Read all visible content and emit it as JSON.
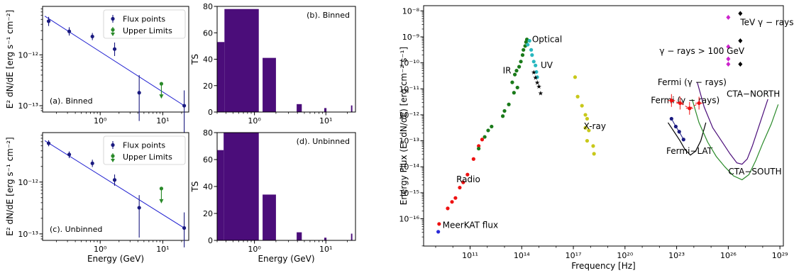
{
  "colors": {
    "navy": "#1a1a80",
    "line_blue": "#1f1fd0",
    "green": "#2a8a2a",
    "purple": "#4b0d7a",
    "red": "#ee1111",
    "forest": "#1a7a1a",
    "cyan": "#2ab8c0",
    "olive": "#c8c81a",
    "magenta": "#cc22cc",
    "black": "#000000",
    "cta_north": "#4b0d7a",
    "cta_south": "#2a8a2a",
    "meerkat": "#2a2ad8"
  },
  "chart_data": [
    {
      "id": "sed_binned",
      "type": "scatter",
      "panel_label": "(a). Binned",
      "xlabel": "",
      "ylabel": "E² dN/dE [erg s⁻¹ cm⁻²]",
      "xscale": "log",
      "yscale": "log",
      "xlim": [
        0.12,
        26
      ],
      "ylim": [
        7.5e-14,
        9e-12
      ],
      "xticks": [
        {
          "v": 1,
          "label": "10⁰"
        },
        {
          "v": 10,
          "label": "10¹"
        }
      ],
      "yticks": [
        {
          "v": 1e-12,
          "label": "10⁻¹²"
        },
        {
          "v": 1e-13,
          "label": "10⁻¹³"
        }
      ],
      "legend": {
        "position": "top-right",
        "entries": [
          "Flux points",
          "Upper Limits"
        ]
      },
      "series": [
        {
          "name": "Flux points",
          "points": [
            {
              "x": 0.15,
              "y": 4.6e-12,
              "lo": 3.7e-12,
              "hi": 5.6e-12
            },
            {
              "x": 0.32,
              "y": 2.9e-12,
              "lo": 2.4e-12,
              "hi": 3.5e-12
            },
            {
              "x": 0.75,
              "y": 2.3e-12,
              "lo": 1.95e-12,
              "hi": 2.7e-12
            },
            {
              "x": 1.7,
              "y": 1.3e-12,
              "lo": 9.5e-13,
              "hi": 1.75e-12
            },
            {
              "x": 4.2,
              "y": 1.8e-13,
              "lo": 5e-14,
              "hi": 4e-13
            },
            {
              "x": 22,
              "y": 1e-13,
              "lo": 3e-14,
              "hi": 2e-13
            }
          ]
        },
        {
          "name": "Upper Limits",
          "points": [
            {
              "x": 9.5,
              "y": 2.7e-13
            }
          ]
        }
      ],
      "model_line": [
        {
          "x": 0.13,
          "y": 5.8e-12
        },
        {
          "x": 22,
          "y": 1e-13
        }
      ]
    },
    {
      "id": "ts_binned",
      "type": "bar",
      "panel_label": "(b). Binned",
      "xlabel": "",
      "ylabel": "TS",
      "xscale": "log",
      "xlim": [
        0.3,
        26
      ],
      "ylim": [
        0,
        80
      ],
      "xticks": [
        {
          "v": 1,
          "label": "10⁰"
        },
        {
          "v": 10,
          "label": "10¹"
        }
      ],
      "yticks": [
        0,
        20,
        40,
        60,
        80
      ],
      "bars": [
        {
          "x0": 0.3,
          "x1": 0.38,
          "value": 53
        },
        {
          "x0": 0.38,
          "x1": 1.15,
          "value": 78
        },
        {
          "x0": 1.3,
          "x1": 2.0,
          "value": 41
        },
        {
          "x0": 3.9,
          "x1": 4.6,
          "value": 6
        },
        {
          "x0": 9.5,
          "x1": 10.2,
          "value": 3
        },
        {
          "x0": 22.5,
          "x1": 23.5,
          "value": 5
        }
      ]
    },
    {
      "id": "sed_unbinned",
      "type": "scatter",
      "panel_label": "(c). Unbinned",
      "xlabel": "Energy (GeV)",
      "ylabel": "E² dN/dE [erg s⁻¹ cm⁻²]",
      "xscale": "log",
      "yscale": "log",
      "xlim": [
        0.12,
        26
      ],
      "ylim": [
        7.5e-14,
        9e-12
      ],
      "xticks": [
        {
          "v": 1,
          "label": "10⁰"
        },
        {
          "v": 10,
          "label": "10¹"
        }
      ],
      "yticks": [
        {
          "v": 1e-12,
          "label": "10⁻¹²"
        },
        {
          "v": 1e-13,
          "label": "10⁻¹³"
        }
      ],
      "legend": {
        "position": "top-right",
        "entries": [
          "Flux points",
          "Upper Limits"
        ]
      },
      "series": [
        {
          "name": "Flux points",
          "points": [
            {
              "x": 0.15,
              "y": 5.6e-12,
              "lo": 4.9e-12,
              "hi": 6.4e-12
            },
            {
              "x": 0.32,
              "y": 3.4e-12,
              "lo": 2.9e-12,
              "hi": 3.9e-12
            },
            {
              "x": 0.75,
              "y": 2.3e-12,
              "lo": 1.95e-12,
              "hi": 2.7e-12
            },
            {
              "x": 1.7,
              "y": 1.1e-12,
              "lo": 8.5e-13,
              "hi": 1.4e-12
            },
            {
              "x": 4.2,
              "y": 3.2e-13,
              "lo": 8.5e-14,
              "hi": 5.6e-13
            },
            {
              "x": 22,
              "y": 1.3e-13,
              "lo": 5.5e-14,
              "hi": 2.6e-13
            }
          ]
        },
        {
          "name": "Upper Limits",
          "points": [
            {
              "x": 9.5,
              "y": 7.5e-13
            }
          ]
        }
      ],
      "model_line": [
        {
          "x": 0.13,
          "y": 6.3e-12
        },
        {
          "x": 22,
          "y": 1.3e-13
        }
      ]
    },
    {
      "id": "ts_unbinned",
      "type": "bar",
      "panel_label": "(d). Unbinned",
      "xlabel": "Energy (GeV)",
      "ylabel": "TS",
      "xscale": "log",
      "xlim": [
        0.3,
        26
      ],
      "ylim": [
        0,
        80
      ],
      "xticks": [
        {
          "v": 1,
          "label": "10⁰"
        },
        {
          "v": 10,
          "label": "10¹"
        }
      ],
      "yticks": [
        0,
        20,
        40,
        60,
        80
      ],
      "bars": [
        {
          "x0": 0.3,
          "x1": 0.37,
          "value": 67
        },
        {
          "x0": 0.37,
          "x1": 1.15,
          "value": 81
        },
        {
          "x0": 1.3,
          "x1": 2.0,
          "value": 34
        },
        {
          "x0": 3.9,
          "x1": 4.6,
          "value": 6
        },
        {
          "x0": 9.5,
          "x1": 10.2,
          "value": 2
        },
        {
          "x0": 22.5,
          "x1": 23.5,
          "value": 5
        }
      ]
    },
    {
      "id": "multiwavelength_sed",
      "type": "scatter",
      "xlabel": "Frequency [Hz]",
      "ylabel": "Energy Flux (E² dN/dE) [erg cm⁻² s⁻¹]",
      "xscale": "log",
      "yscale": "log",
      "xlim_log10": [
        8.3,
        29.2
      ],
      "ylim_log10": [
        -17.05,
        -7.8
      ],
      "xticks": [
        {
          "v": 11,
          "label": "10¹¹"
        },
        {
          "v": 14,
          "label": "10¹⁴"
        },
        {
          "v": 17,
          "label": "10¹⁷"
        },
        {
          "v": 20,
          "label": "10²⁰"
        },
        {
          "v": 23,
          "label": "10²³"
        },
        {
          "v": 26,
          "label": "10²⁶"
        },
        {
          "v": 29,
          "label": "10²⁹"
        }
      ],
      "yticks": [
        {
          "v": -16,
          "label": "10⁻¹⁶"
        },
        {
          "v": -15,
          "label": "10⁻¹⁵"
        },
        {
          "v": -14,
          "label": "10⁻¹⁴"
        },
        {
          "v": -13,
          "label": "10⁻¹³"
        },
        {
          "v": -12,
          "label": "10⁻¹²"
        },
        {
          "v": -11,
          "label": "10⁻¹¹"
        },
        {
          "v": -10,
          "label": "10⁻¹⁰"
        },
        {
          "v": -9,
          "label": "10⁻⁹"
        },
        {
          "v": -8,
          "label": "10⁻⁸"
        }
      ],
      "series": [
        {
          "name": "Radio",
          "label_pos": [
            10.2,
            -14.6
          ],
          "points": [
            [
              9.2,
              -16.2
            ],
            [
              9.7,
              -15.6
            ],
            [
              9.95,
              -15.35
            ],
            [
              10.15,
              -15.2
            ],
            [
              10.4,
              -14.8
            ],
            [
              10.6,
              -14.6
            ],
            [
              10.85,
              -14.3
            ],
            [
              11.2,
              -13.7
            ],
            [
              11.5,
              -13.2
            ],
            [
              11.7,
              -12.95
            ]
          ]
        },
        {
          "name": "MeerKAT flux",
          "label_pos": [
            9.4,
            -16.35
          ],
          "points": [
            [
              9.15,
              -16.5
            ]
          ]
        },
        {
          "name": "IR",
          "label_pos": [
            12.9,
            -10.4
          ],
          "points": [
            [
              11.5,
              -13.3
            ],
            [
              11.85,
              -12.85
            ],
            [
              12.05,
              -12.6
            ],
            [
              12.25,
              -12.45
            ],
            [
              12.9,
              -12.05
            ],
            [
              13.0,
              -11.85
            ],
            [
              13.25,
              -11.6
            ],
            [
              13.55,
              -11.15
            ],
            [
              13.75,
              -10.95
            ],
            [
              13.45,
              -10.75
            ],
            [
              13.6,
              -10.45
            ],
            [
              13.7,
              -10.3
            ],
            [
              13.85,
              -10.15
            ],
            [
              13.95,
              -9.95
            ],
            [
              14.05,
              -9.7
            ],
            [
              14.1,
              -9.5
            ],
            [
              14.2,
              -9.35
            ],
            [
              14.25,
              -9.2
            ],
            [
              14.3,
              -9.1
            ]
          ]
        },
        {
          "name": "Optical",
          "label_pos": [
            14.6,
            -9.2
          ],
          "points": [
            [
              14.35,
              -9.3
            ],
            [
              14.45,
              -9.15
            ],
            [
              14.55,
              -9.5
            ],
            [
              14.6,
              -9.7
            ],
            [
              14.7,
              -9.95
            ],
            [
              14.8,
              -10.1
            ],
            [
              14.85,
              -10.35
            ],
            [
              14.9,
              -10.55
            ]
          ]
        },
        {
          "name": "UV",
          "label_pos": [
            15.1,
            -10.2
          ],
          "points": [
            [
              14.7,
              -10.35
            ],
            [
              14.8,
              -10.55
            ],
            [
              14.9,
              -10.75
            ],
            [
              15.0,
              -10.9
            ],
            [
              15.1,
              -11.15
            ]
          ]
        },
        {
          "name": "X-ray",
          "label_pos": [
            17.6,
            -12.55
          ],
          "points": [
            [
              17.1,
              -10.55
            ],
            [
              17.25,
              -11.3
            ],
            [
              17.5,
              -11.65
            ],
            [
              17.7,
              -12.0
            ],
            [
              17.8,
              -12.15
            ],
            [
              17.7,
              -12.5
            ],
            [
              17.9,
              -12.6
            ],
            [
              17.8,
              -13.0
            ],
            [
              18.15,
              -13.2
            ],
            [
              18.2,
              -13.5
            ]
          ]
        },
        {
          "name": "Fermi (γ − rays)",
          "label_pos": [
            21.5,
            -11.55
          ],
          "color": "navy",
          "points": [
            [
              22.7,
              -12.15
            ],
            [
              22.95,
              -12.45
            ],
            [
              23.15,
              -12.65
            ],
            [
              23.4,
              -12.95
            ]
          ]
        },
        {
          "name": "Fermi (γ − rays)",
          "label_pos": [
            21.9,
            -10.85
          ],
          "color": "red",
          "errorbars": true,
          "points": [
            [
              22.7,
              -11.45
            ],
            [
              23.2,
              -11.55
            ],
            [
              23.75,
              -11.75
            ],
            [
              24.3,
              -11.55
            ]
          ]
        },
        {
          "name": "γ − rays > 100 GeV",
          "label_pos": [
            22.0,
            -9.65
          ],
          "points": [
            [
              26.0,
              -8.25
            ],
            [
              26.0,
              -9.38
            ],
            [
              26.0,
              -9.85
            ],
            [
              26.0,
              -10.05
            ]
          ]
        },
        {
          "name": "TeV γ − rays",
          "label_pos": [
            26.7,
            -8.55
          ],
          "points": [
            [
              26.7,
              -8.1
            ],
            [
              26.7,
              -9.15
            ],
            [
              26.7,
              -10.05
            ]
          ]
        }
      ],
      "curves": [
        {
          "name": "Fermi−LAT",
          "label_pos": [
            22.4,
            -13.5
          ],
          "points": [
            [
              22.5,
              -12.3
            ],
            [
              22.9,
              -12.7
            ],
            [
              23.2,
              -13.0
            ],
            [
              23.5,
              -13.35
            ],
            [
              23.8,
              -13.55
            ],
            [
              24.1,
              -13.4
            ],
            [
              24.4,
              -13.0
            ],
            [
              24.7,
              -12.3
            ]
          ]
        },
        {
          "name": "CTA−NORTH",
          "label_pos": [
            25.9,
            -11.3
          ],
          "points": [
            [
              24.2,
              -10.75
            ],
            [
              24.6,
              -11.7
            ],
            [
              25.1,
              -12.5
            ],
            [
              25.6,
              -13.0
            ],
            [
              26.1,
              -13.5
            ],
            [
              26.5,
              -13.85
            ],
            [
              26.8,
              -13.9
            ],
            [
              27.1,
              -13.7
            ],
            [
              27.4,
              -13.2
            ],
            [
              27.7,
              -12.6
            ],
            [
              28.0,
              -12.0
            ],
            [
              28.3,
              -11.4
            ]
          ]
        },
        {
          "name": "CTA−SOUTH",
          "label_pos": [
            26.0,
            -14.3
          ],
          "points": [
            [
              23.9,
              -11.4
            ],
            [
              24.3,
              -12.3
            ],
            [
              24.8,
              -13.05
            ],
            [
              25.3,
              -13.6
            ],
            [
              25.8,
              -14.0
            ],
            [
              26.3,
              -14.35
            ],
            [
              26.8,
              -14.5
            ],
            [
              27.2,
              -14.3
            ],
            [
              27.6,
              -13.75
            ],
            [
              28.0,
              -13.1
            ],
            [
              28.5,
              -12.35
            ],
            [
              28.9,
              -11.6
            ]
          ]
        }
      ]
    }
  ]
}
